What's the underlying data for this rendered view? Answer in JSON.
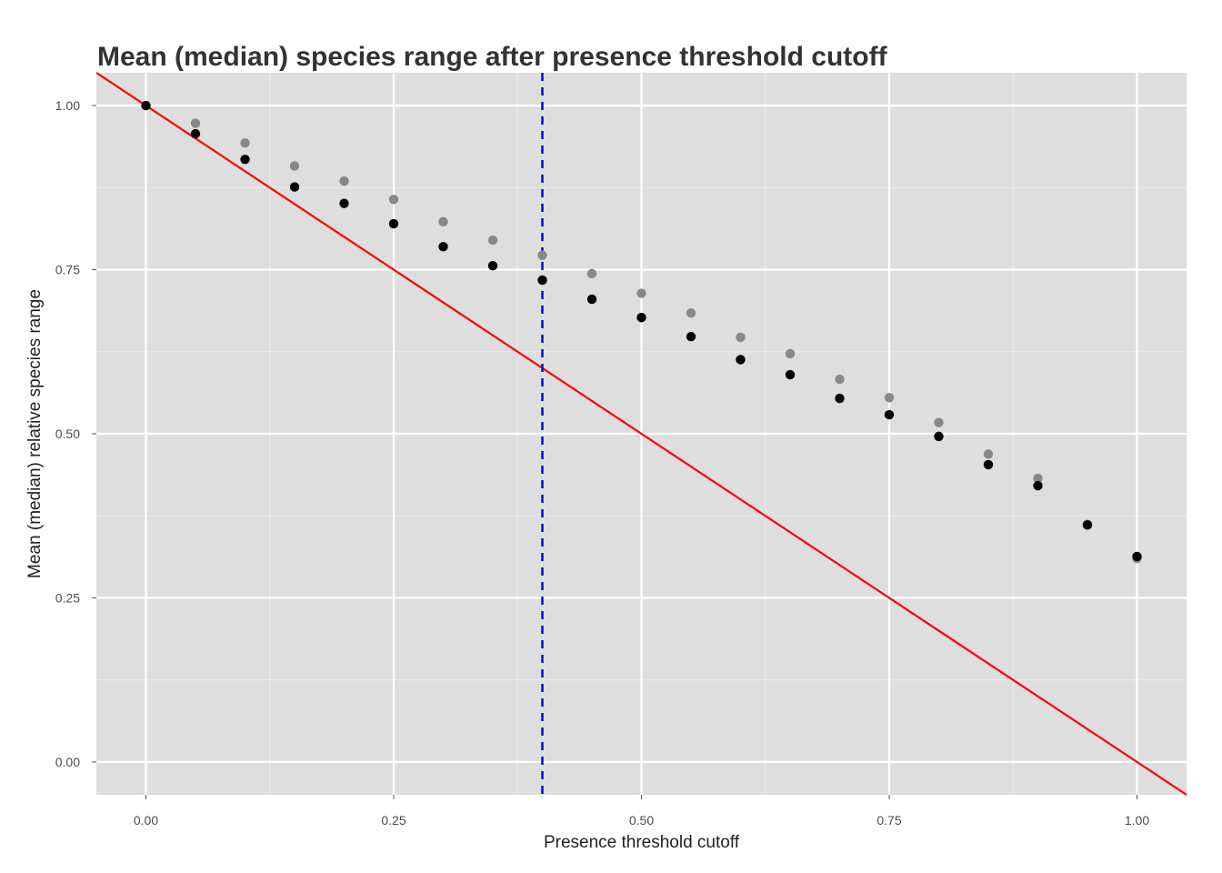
{
  "chart_data": {
    "type": "scatter",
    "title": "Mean (median) species range after presence threshold cutoff",
    "xlabel": "Presence threshold cutoff",
    "ylabel": "Mean (median) relative species range",
    "xlim": [
      -0.05,
      1.05
    ],
    "ylim": [
      -0.05,
      1.05
    ],
    "x_ticks": [
      0.0,
      0.25,
      0.5,
      0.75,
      1.0
    ],
    "x_tick_labels": [
      "0.00",
      "0.25",
      "0.50",
      "0.75",
      "1.00"
    ],
    "y_ticks": [
      0.0,
      0.25,
      0.5,
      0.75,
      1.0
    ],
    "y_tick_labels": [
      "0.00",
      "0.25",
      "0.50",
      "0.75",
      "1.00"
    ],
    "grid": true,
    "x": [
      0.0,
      0.05,
      0.1,
      0.15,
      0.2,
      0.25,
      0.3,
      0.35,
      0.4,
      0.45,
      0.5,
      0.55,
      0.6,
      0.65,
      0.7,
      0.75,
      0.8,
      0.85,
      0.9,
      0.95,
      1.0
    ],
    "series": [
      {
        "color": "#888888",
        "values": [
          1.0,
          0.973,
          0.943,
          0.908,
          0.885,
          0.857,
          0.823,
          0.795,
          0.772,
          0.744,
          0.714,
          0.684,
          0.647,
          0.622,
          0.583,
          0.555,
          0.517,
          0.469,
          0.432,
          0.362,
          0.31
        ]
      },
      {
        "color": "#000000",
        "values": [
          1.0,
          0.957,
          0.918,
          0.876,
          0.851,
          0.82,
          0.785,
          0.756,
          0.734,
          0.705,
          0.677,
          0.648,
          0.613,
          0.59,
          0.554,
          0.529,
          0.496,
          0.453,
          0.421,
          0.361,
          0.313
        ]
      }
    ],
    "reference_line": {
      "color": "#ff0000",
      "slope": -1,
      "intercept": 1
    },
    "vertical_line": {
      "color": "#0000dd",
      "x": 0.4,
      "style": "dashed"
    }
  }
}
